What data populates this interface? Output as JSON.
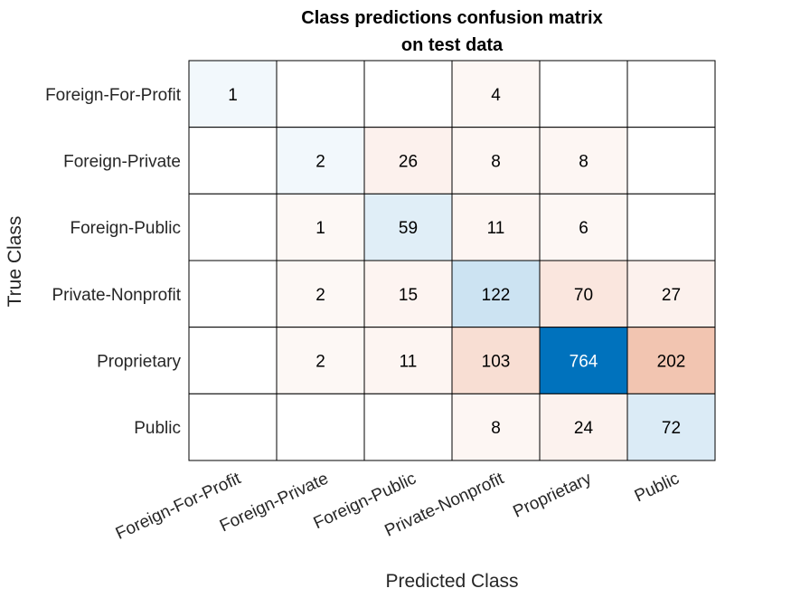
{
  "chart_data": {
    "type": "heatmap",
    "title": [
      "Class predictions confusion matrix",
      "on test data"
    ],
    "xlabel": "Predicted Class",
    "ylabel": "True Class",
    "x_categories": [
      "Foreign-For-Profit",
      "Foreign-Private",
      "Foreign-Public",
      "Private-Nonprofit",
      "Proprietary",
      "Public"
    ],
    "y_categories": [
      "Foreign-For-Profit",
      "Foreign-Private",
      "Foreign-Public",
      "Private-Nonprofit",
      "Proprietary",
      "Public"
    ],
    "values": [
      [
        1,
        null,
        null,
        4,
        null,
        null
      ],
      [
        null,
        2,
        26,
        8,
        8,
        null
      ],
      [
        null,
        1,
        59,
        11,
        6,
        null
      ],
      [
        null,
        2,
        15,
        122,
        70,
        27
      ],
      [
        null,
        2,
        11,
        103,
        764,
        202
      ],
      [
        null,
        null,
        null,
        8,
        24,
        72
      ]
    ],
    "colors": {
      "correct_max": "#0072bd",
      "incorrect_max": "#d95319",
      "background": "#ffffff",
      "grid": "#000000",
      "text_dark": "#000000",
      "text_light": "#ffffff"
    }
  }
}
